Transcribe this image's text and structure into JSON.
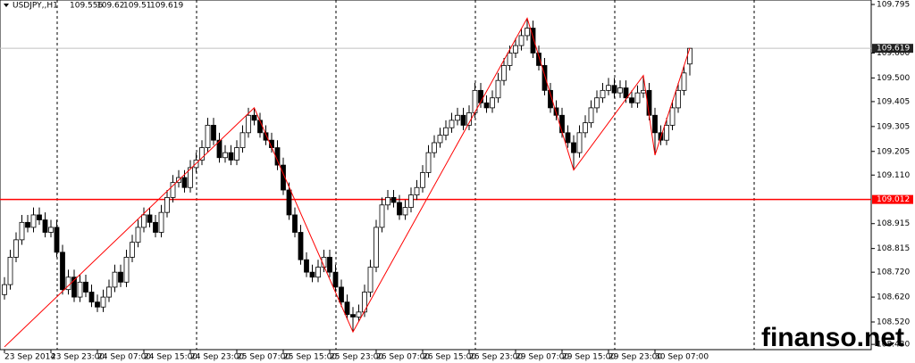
{
  "chart_data": {
    "type": "candlestick",
    "symbol": "USDJPY,,H1",
    "watermark": "finanso.net",
    "categories": [
      "23 Sep 2014",
      null,
      null,
      null,
      null,
      null,
      null,
      null,
      "23 Sep 23:00",
      null,
      null,
      null,
      null,
      null,
      null,
      null,
      "24 Sep 07:00",
      null,
      null,
      null,
      null,
      null,
      null,
      null,
      "24 Sep 15:00",
      null,
      null,
      null,
      null,
      null,
      null,
      null,
      "24 Sep 23:00",
      null,
      null,
      null,
      null,
      null,
      null,
      null,
      "25 Sep 07:00",
      null,
      null,
      null,
      null,
      null,
      null,
      null,
      "25 Sep 15:00",
      null,
      null,
      null,
      null,
      null,
      null,
      null,
      "25 Sep 23:00",
      null,
      null,
      null,
      null,
      null,
      null,
      null,
      "26 Sep 07:00",
      null,
      null,
      null,
      null,
      null,
      null,
      null,
      "26 Sep 15:00",
      null,
      null,
      null,
      null,
      null,
      null,
      null,
      "26 Sep 23:00",
      null,
      null,
      null,
      null,
      null,
      null,
      null,
      "29 Sep 07:00",
      null,
      null,
      null,
      null,
      null,
      null,
      null,
      "29 Sep 15:00",
      null,
      null,
      null,
      null,
      null,
      null,
      null,
      "29 Sep 23:00",
      null,
      null,
      null,
      null,
      null,
      null,
      null,
      "30 Sep 07:00",
      null,
      null,
      null,
      null,
      null,
      null
    ],
    "open": [
      108.63,
      108.67,
      108.78,
      108.85,
      108.92,
      108.9,
      108.95,
      108.93,
      108.88,
      108.9,
      108.8,
      108.65,
      108.7,
      108.62,
      108.68,
      108.64,
      108.6,
      108.58,
      108.62,
      108.66,
      108.72,
      108.68,
      108.78,
      108.84,
      108.9,
      108.95,
      108.92,
      108.88,
      108.96,
      109.02,
      109.08,
      109.1,
      109.06,
      109.14,
      109.17,
      109.22,
      109.31,
      109.25,
      109.18,
      109.2,
      109.17,
      109.22,
      109.28,
      109.35,
      109.33,
      109.28,
      109.25,
      109.22,
      109.15,
      109.05,
      108.95,
      108.88,
      108.77,
      108.72,
      108.7,
      108.74,
      108.78,
      108.72,
      108.66,
      108.6,
      108.55,
      108.54,
      108.56,
      108.64,
      108.74,
      108.9,
      108.99,
      109.02,
      109.0,
      108.95,
      108.98,
      109.03,
      109.06,
      109.12,
      109.2,
      109.24,
      109.27,
      109.3,
      109.33,
      109.35,
      109.31,
      109.36,
      109.45,
      109.4,
      109.38,
      109.42,
      109.49,
      109.55,
      109.6,
      109.63,
      109.67,
      109.7,
      109.6,
      109.55,
      109.45,
      109.38,
      109.35,
      109.28,
      109.24,
      109.2,
      109.28,
      109.32,
      109.38,
      109.42,
      109.45,
      109.47,
      109.44,
      109.46,
      109.42,
      109.4,
      109.44,
      109.45,
      109.35,
      109.28,
      109.25,
      109.31,
      109.38,
      109.45,
      109.556
    ],
    "high": [
      108.7,
      108.81,
      108.88,
      108.95,
      108.95,
      108.98,
      108.98,
      108.96,
      108.93,
      108.93,
      108.83,
      108.73,
      108.73,
      108.71,
      108.71,
      108.67,
      108.63,
      108.65,
      108.69,
      108.75,
      108.75,
      108.81,
      108.87,
      108.93,
      108.98,
      108.98,
      108.95,
      108.99,
      109.05,
      109.11,
      109.13,
      109.13,
      109.17,
      109.2,
      109.25,
      109.34,
      109.34,
      109.28,
      109.23,
      109.23,
      109.25,
      109.31,
      109.38,
      109.38,
      109.36,
      109.31,
      109.28,
      109.25,
      109.18,
      109.08,
      108.98,
      108.91,
      108.8,
      108.75,
      108.77,
      108.81,
      108.81,
      108.75,
      108.69,
      108.63,
      108.58,
      108.59,
      108.67,
      108.77,
      108.93,
      109.02,
      109.05,
      109.05,
      109.03,
      109.01,
      109.06,
      109.09,
      109.15,
      109.23,
      109.27,
      109.3,
      109.33,
      109.36,
      109.38,
      109.38,
      109.39,
      109.48,
      109.48,
      109.43,
      109.45,
      109.52,
      109.58,
      109.63,
      109.66,
      109.7,
      109.74,
      109.73,
      109.63,
      109.58,
      109.48,
      109.41,
      109.38,
      109.31,
      109.27,
      109.31,
      109.35,
      109.41,
      109.45,
      109.48,
      109.5,
      109.5,
      109.49,
      109.49,
      109.45,
      109.47,
      109.51,
      109.48,
      109.38,
      109.31,
      109.34,
      109.41,
      109.48,
      109.55,
      109.62
    ],
    "low": [
      108.61,
      108.65,
      108.76,
      108.83,
      108.88,
      108.88,
      108.91,
      108.86,
      108.86,
      108.78,
      108.63,
      108.63,
      108.6,
      108.6,
      108.62,
      108.58,
      108.56,
      108.56,
      108.6,
      108.64,
      108.66,
      108.66,
      108.76,
      108.82,
      108.88,
      108.9,
      108.86,
      108.86,
      108.94,
      109.0,
      109.06,
      109.04,
      109.04,
      109.12,
      109.15,
      109.2,
      109.23,
      109.16,
      109.16,
      109.15,
      109.15,
      109.2,
      109.26,
      109.31,
      109.26,
      109.23,
      109.2,
      109.13,
      109.03,
      108.93,
      108.86,
      108.75,
      108.7,
      108.68,
      108.68,
      108.72,
      108.7,
      108.64,
      108.58,
      108.53,
      108.48,
      108.52,
      108.54,
      108.62,
      108.72,
      108.88,
      108.97,
      108.98,
      108.93,
      108.93,
      108.96,
      109.01,
      109.04,
      109.1,
      109.18,
      109.22,
      109.25,
      109.28,
      109.31,
      109.29,
      109.29,
      109.34,
      109.38,
      109.36,
      109.36,
      109.4,
      109.47,
      109.53,
      109.58,
      109.61,
      109.65,
      109.58,
      109.53,
      109.43,
      109.36,
      109.33,
      109.26,
      109.22,
      109.13,
      109.18,
      109.26,
      109.3,
      109.36,
      109.4,
      109.43,
      109.42,
      109.42,
      109.4,
      109.38,
      109.38,
      109.42,
      109.33,
      109.19,
      109.23,
      109.23,
      109.29,
      109.36,
      109.43,
      109.51
    ],
    "close": [
      108.67,
      108.78,
      108.85,
      108.92,
      108.9,
      108.95,
      108.93,
      108.88,
      108.9,
      108.8,
      108.65,
      108.7,
      108.62,
      108.68,
      108.64,
      108.6,
      108.58,
      108.62,
      108.66,
      108.72,
      108.68,
      108.78,
      108.84,
      108.9,
      108.95,
      108.92,
      108.88,
      108.96,
      109.02,
      109.08,
      109.1,
      109.06,
      109.14,
      109.17,
      109.22,
      109.31,
      109.25,
      109.18,
      109.2,
      109.17,
      109.22,
      109.28,
      109.35,
      109.33,
      109.28,
      109.25,
      109.22,
      109.15,
      109.05,
      108.95,
      108.88,
      108.77,
      108.72,
      108.7,
      108.74,
      108.78,
      108.72,
      108.66,
      108.6,
      108.55,
      108.54,
      108.56,
      108.64,
      108.74,
      108.9,
      108.99,
      109.02,
      109.0,
      108.95,
      108.98,
      109.03,
      109.06,
      109.12,
      109.2,
      109.24,
      109.27,
      109.3,
      109.33,
      109.35,
      109.31,
      109.36,
      109.45,
      109.4,
      109.38,
      109.42,
      109.49,
      109.55,
      109.6,
      109.63,
      109.67,
      109.7,
      109.6,
      109.55,
      109.45,
      109.38,
      109.35,
      109.28,
      109.24,
      109.2,
      109.28,
      109.32,
      109.38,
      109.42,
      109.45,
      109.47,
      109.44,
      109.46,
      109.42,
      109.4,
      109.44,
      109.45,
      109.35,
      109.28,
      109.25,
      109.31,
      109.38,
      109.45,
      109.52,
      109.619
    ],
    "zigzag": {
      "color": "#ff0000",
      "x": [
        0,
        43,
        60,
        90,
        98,
        110,
        112,
        118
      ],
      "values": [
        108.42,
        109.38,
        108.48,
        109.74,
        109.13,
        109.51,
        109.19,
        109.62
      ]
    },
    "hline": {
      "value": 109.012,
      "color": "#ff0000"
    },
    "ylim": [
      108.409,
      109.813
    ],
    "yticks": [
      109.795,
      {
        "value": 109.6,
        "label": "109.600"
      },
      {
        "value": 109.5,
        "label": "109.500"
      },
      109.405,
      109.305,
      109.205,
      {
        "value": 109.11,
        "label": "109.110"
      },
      108.915,
      108.815,
      {
        "value": 108.72,
        "label": "108.720"
      },
      {
        "value": 108.62,
        "label": "108.620"
      },
      {
        "value": 108.52,
        "label": "108.520"
      },
      {
        "value": 108.43,
        "label": "108.430"
      }
    ]
  }
}
